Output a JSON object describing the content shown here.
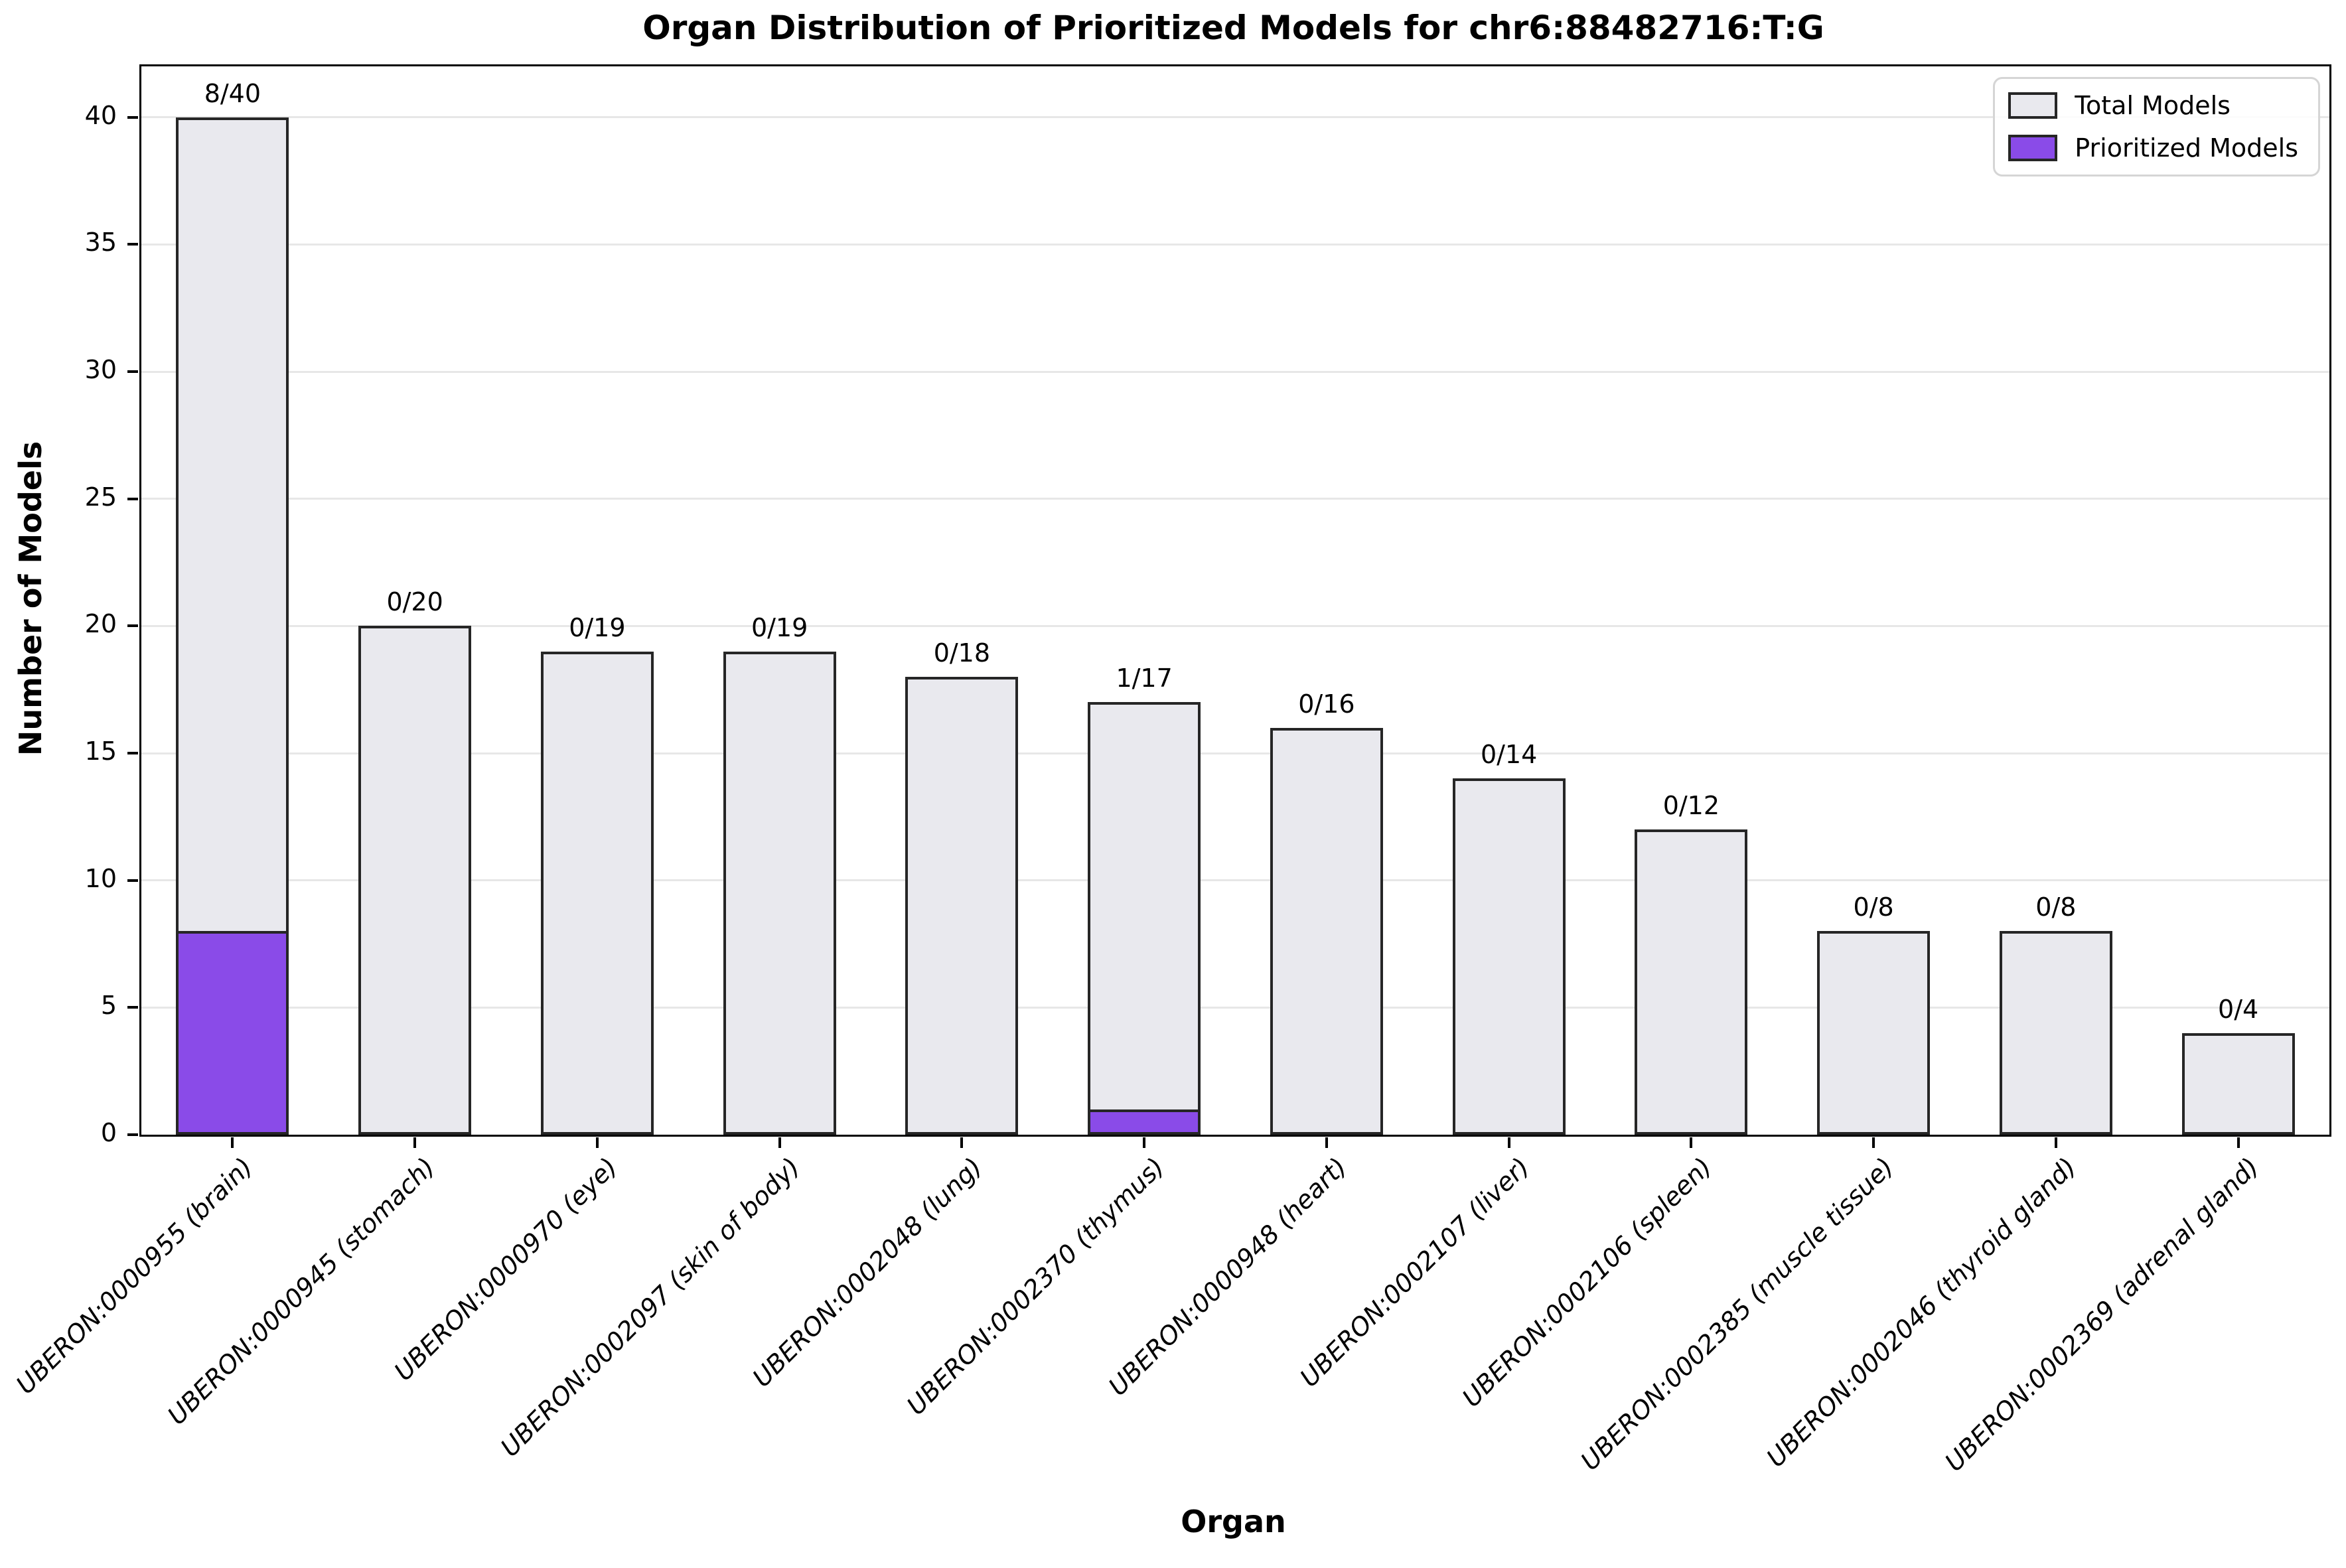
{
  "chart_data": {
    "type": "bar",
    "title": "Organ Distribution of Prioritized Models for chr6:88482716:T:G",
    "xlabel": "Organ",
    "ylabel": "Number of Models",
    "ylim": [
      0,
      42
    ],
    "yticks": [
      0,
      5,
      10,
      15,
      20,
      25,
      30,
      35,
      40
    ],
    "grid": "horizontal",
    "legend_position": "upper-right",
    "categories": [
      "UBERON:0000955 (brain)",
      "UBERON:0000945 (stomach)",
      "UBERON:0000970 (eye)",
      "UBERON:0002097 (skin of body)",
      "UBERON:0002048 (lung)",
      "UBERON:0002370 (thymus)",
      "UBERON:0000948 (heart)",
      "UBERON:0002107 (liver)",
      "UBERON:0002106 (spleen)",
      "UBERON:0002385 (muscle tissue)",
      "UBERON:0002046 (thyroid gland)",
      "UBERON:0002369 (adrenal gland)"
    ],
    "series": [
      {
        "name": "Total Models",
        "color": "#e9e9ee",
        "edge_color": "#262626",
        "values": [
          40,
          20,
          19,
          19,
          18,
          17,
          16,
          14,
          12,
          8,
          8,
          4
        ]
      },
      {
        "name": "Prioritized Models",
        "color": "#8a4be8",
        "edge_color": "#262626",
        "values": [
          8,
          0,
          0,
          0,
          0,
          1,
          0,
          0,
          0,
          0,
          0,
          0
        ]
      }
    ],
    "bar_labels": [
      "8/40",
      "0/20",
      "0/19",
      "0/19",
      "0/18",
      "1/17",
      "0/16",
      "0/14",
      "0/12",
      "0/8",
      "0/8",
      "0/4"
    ],
    "legend": {
      "entries": [
        {
          "label": "Total Models",
          "color": "#e9e9ee"
        },
        {
          "label": "Prioritized Models",
          "color": "#8a4be8"
        }
      ]
    }
  }
}
